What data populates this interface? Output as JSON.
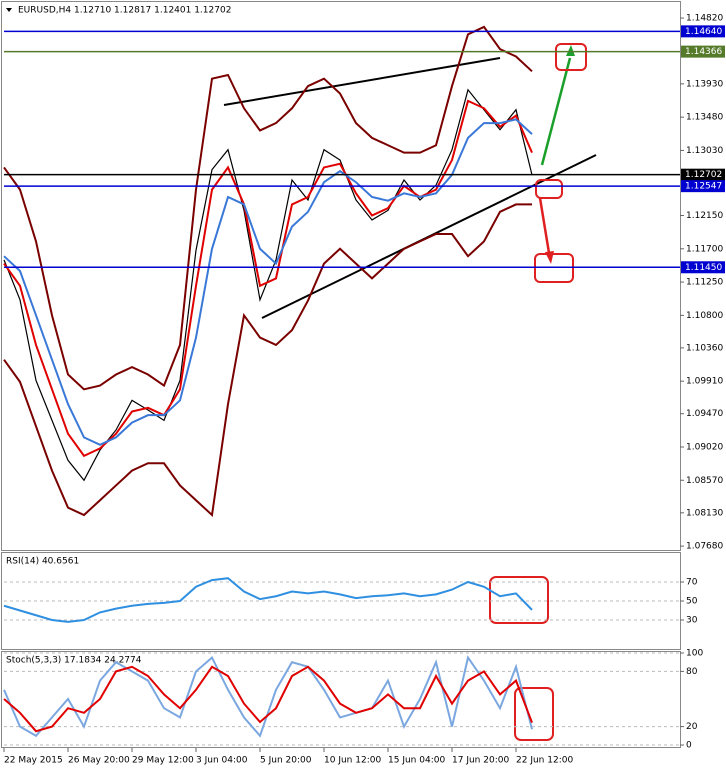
{
  "chart_data": [
    {
      "type": "line",
      "title": "EURUSD,H4  1.12710 1.12817 1.12401 1.12702",
      "ylim": [
        1.076,
        1.1501
      ],
      "yticks": [
        {
          "value": 1.1482,
          "label": "1.14820"
        },
        {
          "value": 1.1393,
          "label": "1.13930"
        },
        {
          "value": 1.1348,
          "label": "1.13480"
        },
        {
          "value": 1.1303,
          "label": "1.13030"
        },
        {
          "value": 1.1215,
          "label": "1.12150"
        },
        {
          "value": 1.117,
          "label": "1.11700"
        },
        {
          "value": 1.1125,
          "label": "1.11250"
        },
        {
          "value": 1.108,
          "label": "1.10800"
        },
        {
          "value": 1.1036,
          "label": "1.10360"
        },
        {
          "value": 1.0991,
          "label": "1.09910"
        },
        {
          "value": 1.0947,
          "label": "1.09470"
        },
        {
          "value": 1.0902,
          "label": "1.09020"
        },
        {
          "value": 1.0857,
          "label": "1.08570"
        },
        {
          "value": 1.0813,
          "label": "1.08130"
        },
        {
          "value": 1.0768,
          "label": "1.07680"
        }
      ],
      "grid": false,
      "series": [
        {
          "color": "#000000",
          "values": [
            1.1155,
            1.1101,
            1.0992,
            1.0938,
            1.0884,
            1.0857,
            1.0898,
            1.0925,
            1.0965,
            1.0952,
            1.0938,
            1.0992,
            1.1168,
            1.1277,
            1.1304,
            1.1222,
            1.1101,
            1.1155,
            1.1263,
            1.1236,
            1.1304,
            1.129,
            1.1236,
            1.1209,
            1.1222,
            1.1263,
            1.1236,
            1.1256,
            1.1304,
            1.1385,
            1.1358,
            1.1331,
            1.1358,
            1.127
          ]
        },
        {
          "color": "#e00000",
          "values": [
            1.115,
            1.112,
            1.104,
            1.098,
            1.092,
            1.089,
            1.09,
            1.092,
            1.095,
            1.0955,
            1.0945,
            1.098,
            1.112,
            1.125,
            1.128,
            1.123,
            1.112,
            1.113,
            1.123,
            1.124,
            1.128,
            1.1285,
            1.1245,
            1.1215,
            1.1225,
            1.1255,
            1.124,
            1.125,
            1.129,
            1.137,
            1.136,
            1.1335,
            1.135,
            1.13
          ]
        },
        {
          "color": "#3a78d8",
          "values": [
            1.116,
            1.114,
            1.108,
            1.102,
            1.096,
            1.0915,
            1.0905,
            1.0915,
            1.0935,
            1.0945,
            1.0945,
            1.0965,
            1.105,
            1.117,
            1.124,
            1.123,
            1.117,
            1.115,
            1.12,
            1.122,
            1.126,
            1.1275,
            1.126,
            1.124,
            1.1235,
            1.1245,
            1.124,
            1.1245,
            1.127,
            1.132,
            1.134,
            1.134,
            1.1345,
            1.1325
          ]
        },
        {
          "color": "#7a0000",
          "values": [
            1.128,
            1.125,
            1.118,
            1.108,
            1.1,
            1.098,
            1.0985,
            1.1,
            1.101,
            1.1,
            1.0985,
            1.104,
            1.125,
            1.14,
            1.1405,
            1.136,
            1.133,
            1.134,
            1.136,
            1.139,
            1.14,
            1.138,
            1.134,
            1.132,
            1.131,
            1.13,
            1.13,
            1.131,
            1.139,
            1.146,
            1.147,
            1.144,
            1.143,
            1.141
          ]
        },
        {
          "color": "#7a0000",
          "values": [
            1.102,
            1.099,
            1.093,
            1.087,
            1.082,
            1.081,
            1.083,
            1.085,
            1.087,
            1.088,
            1.088,
            1.085,
            1.083,
            1.081,
            1.096,
            1.108,
            1.105,
            1.104,
            1.106,
            1.11,
            1.115,
            1.117,
            1.115,
            1.113,
            1.115,
            1.117,
            1.118,
            1.119,
            1.119,
            1.116,
            1.118,
            1.122,
            1.123,
            1.123
          ]
        }
      ],
      "levels": [
        {
          "value": 1.1464,
          "label": "1.14640",
          "color": "#0000d0"
        },
        {
          "value": 1.14366,
          "label": "1.14366",
          "color": "#557a2a"
        },
        {
          "value": 1.12702,
          "label": "1.12702",
          "color": "#000000"
        },
        {
          "value": 1.12547,
          "label": "1.12547",
          "color": "#0000d0"
        },
        {
          "value": 1.1145,
          "label": "1.11450",
          "color": "#0000d0"
        }
      ]
    },
    {
      "type": "line",
      "title": "RSI(14) 40.6561",
      "ylim": [
        0,
        100
      ],
      "yticks": [
        70,
        50,
        30
      ],
      "grid": true,
      "series": [
        {
          "color": "#2f8fe0",
          "values": [
            45,
            40,
            35,
            30,
            28,
            30,
            38,
            42,
            45,
            47,
            48,
            50,
            65,
            72,
            74,
            60,
            52,
            55,
            60,
            58,
            60,
            57,
            53,
            55,
            56,
            58,
            55,
            57,
            62,
            70,
            65,
            55,
            58,
            40.6561
          ]
        }
      ]
    },
    {
      "type": "line",
      "title": "Stoch(5,3,3) 17.1834 24.2774",
      "ylim": [
        0,
        100
      ],
      "yticks": [
        100,
        80,
        20,
        0
      ],
      "grid": true,
      "categories": [
        "22 May 2015",
        null,
        null,
        null,
        "26 May 20:00",
        null,
        null,
        null,
        "29 May 12:00",
        null,
        null,
        null,
        "3 Jun 04:00",
        null,
        null,
        null,
        "5 Jun 20:00",
        null,
        null,
        null,
        "10 Jun 12:00",
        null,
        null,
        null,
        "15 Jun 04:00",
        null,
        null,
        null,
        "17 Jun 20:00",
        null,
        null,
        null,
        "22 Jun 12:00",
        null
      ],
      "series": [
        {
          "color": "#7ba7e0",
          "values": [
            60,
            20,
            10,
            30,
            50,
            20,
            70,
            90,
            80,
            70,
            40,
            30,
            80,
            95,
            60,
            30,
            10,
            60,
            90,
            85,
            60,
            30,
            35,
            40,
            70,
            20,
            50,
            90,
            20,
            95,
            70,
            40,
            85,
            17.1834
          ]
        },
        {
          "color": "#e00000",
          "values": [
            50,
            35,
            15,
            20,
            40,
            35,
            50,
            80,
            85,
            75,
            55,
            40,
            60,
            85,
            75,
            45,
            25,
            40,
            75,
            85,
            70,
            45,
            35,
            40,
            55,
            40,
            40,
            75,
            45,
            70,
            80,
            55,
            70,
            24.2774
          ]
        }
      ]
    }
  ]
}
